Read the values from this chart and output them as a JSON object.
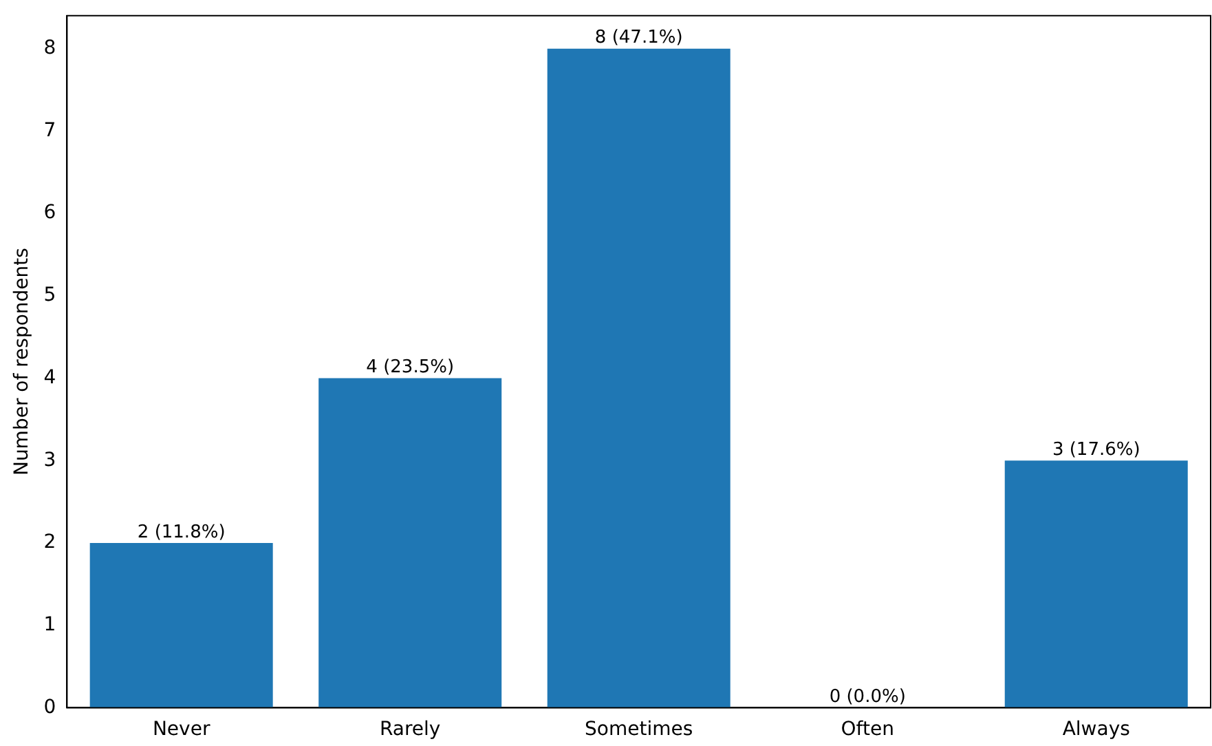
{
  "chart_data": {
    "type": "bar",
    "ylabel": "Number of respondents",
    "categories": [
      "Never",
      "Rarely",
      "Sometimes",
      "Often",
      "Always"
    ],
    "values": [
      2,
      4,
      8,
      0,
      3
    ],
    "color": "#1f77b4",
    "value_labels": [
      "2 (11.8%)",
      "4 (23.5%)",
      "8 (47.1%)",
      "0 (0.0%)",
      "3 (17.6%)"
    ],
    "ylim": [
      0,
      8.4
    ],
    "yticks": [
      0,
      1,
      2,
      3,
      4,
      5,
      6,
      7,
      8
    ],
    "grid": false,
    "legend": false
  }
}
